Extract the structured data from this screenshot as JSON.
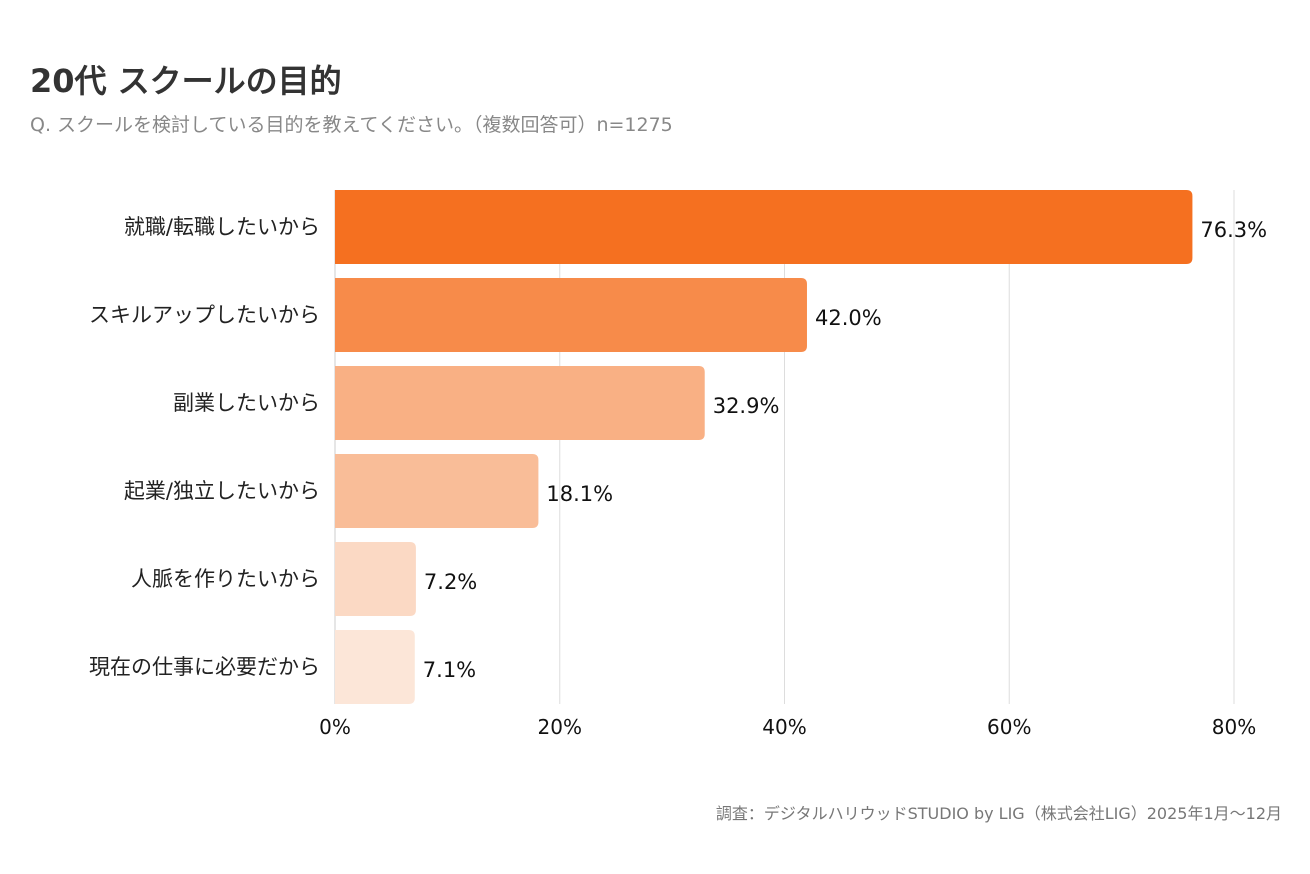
{
  "title": "20代 スクールの目的",
  "subtitle": "Q. スクールを検討している目的を教えてください。（複数回答可）n=1275",
  "source": "調査：デジタルハリウッドSTUDIO by LIG（株式会社LIG）2025年1月〜12月",
  "chart_data": {
    "type": "bar",
    "orientation": "horizontal",
    "title": "20代 スクールの目的",
    "categories": [
      "就職/転職したいから",
      "スキルアップしたいから",
      "副業したいから",
      "起業/独立したいから",
      "人脈を作りたいから",
      "現在の仕事に必要だから"
    ],
    "values": [
      76.3,
      42.0,
      32.9,
      18.1,
      7.2,
      7.1
    ],
    "value_labels": [
      "76.3%",
      "42.0%",
      "32.9%",
      "18.1%",
      "7.2%",
      "7.1%"
    ],
    "colors": [
      "#f57020",
      "#f78b4a",
      "#f9b084",
      "#f9bd98",
      "#fbd9c4",
      "#fce6d8"
    ],
    "xlim": [
      0,
      80
    ],
    "xticks": [
      0,
      20,
      40,
      60,
      80
    ],
    "xtick_labels": [
      "0%",
      "20%",
      "40%",
      "60%",
      "80%"
    ],
    "grid": true,
    "legend": "none"
  }
}
